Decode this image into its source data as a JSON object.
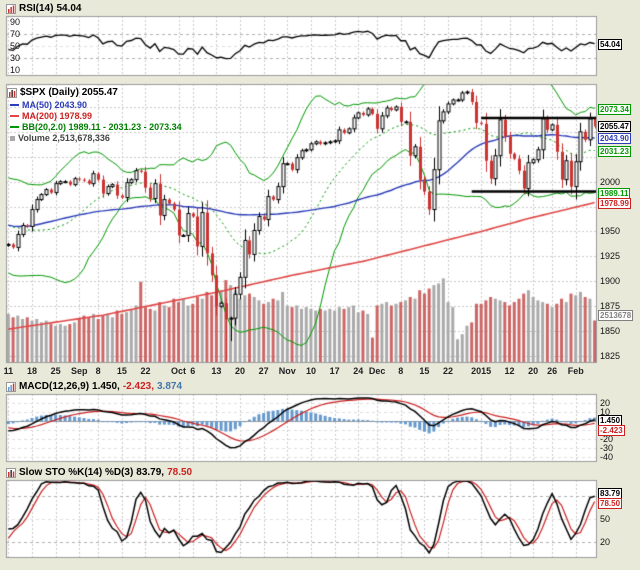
{
  "colors": {
    "background": "#e9e9da",
    "plot_bg": "#ffffff",
    "grid": "#cccccc",
    "grid_strong": "#b0b0b0",
    "border": "#999999",
    "ma50": "#2b3db8",
    "ma200": "#e04848",
    "bb": "#009900",
    "candle_down": "#cc3333",
    "candle_stroke": "#000000",
    "volume_up": "#aaaaaa",
    "volume_down": "#cc6666",
    "macd_line": "#000000",
    "macd_signal": "#cc2222",
    "macd_hist": "#6699cc",
    "sto_k": "#000000",
    "sto_d": "#cc2222",
    "rsi_line": "#000000",
    "trendline": "#000000",
    "volume_text": "#555555"
  },
  "panels": {
    "rsi": {
      "name": "RSI(14)",
      "value": "54.04"
    },
    "main": {
      "title": "$SPX (Daily) 2055.47",
      "legend": {
        "ma50": "MA(50) 2043.90",
        "ma200": "MA(200) 1978.99",
        "bb": "BB(20,2.0) 1989.11 - 2031.23 - 2073.34",
        "volume": "Volume 2,513,678,336"
      }
    },
    "macd": {
      "name": "MACD(12,26,9)",
      "macd": "1.450,",
      "signal": "-2.423,",
      "hist": "3.874"
    },
    "sto": {
      "name": "Slow STO %K(14) %D(3)",
      "k": "83.79,",
      "d": "78.50"
    }
  },
  "chart_data": [
    {
      "type": "line",
      "name": "RSI(14)",
      "params": {
        "period": 14
      },
      "derived_from": "$SPX daily closes",
      "last": 54.04,
      "ylim": [
        0,
        100
      ],
      "yticks": [
        90,
        70,
        50,
        30,
        10
      ],
      "hlines": [
        70,
        30
      ],
      "mid_line": 50,
      "badge": {
        "value": 54.04,
        "text": "54.04",
        "color": "#000000"
      }
    },
    {
      "type": "candlestick",
      "symbol": "$SPX",
      "timeframe": "Daily",
      "last": 2055.47,
      "ylim": [
        1818,
        2098
      ],
      "grid_step": 25,
      "yticks": [
        2000,
        1950,
        1925,
        1900,
        1875,
        1850,
        1825
      ],
      "x_ticks": [
        [
          0,
          "11"
        ],
        [
          5,
          "18"
        ],
        [
          10,
          "25"
        ],
        [
          15,
          "Sep"
        ],
        [
          19,
          "8"
        ],
        [
          24,
          "15"
        ],
        [
          29,
          "22"
        ],
        [
          36,
          "Oct"
        ],
        [
          39,
          "6"
        ],
        [
          44,
          "13"
        ],
        [
          49,
          "20"
        ],
        [
          54,
          "27"
        ],
        [
          59,
          "Nov"
        ],
        [
          64,
          "10"
        ],
        [
          69,
          "17"
        ],
        [
          74,
          "24"
        ],
        [
          78,
          "Dec"
        ],
        [
          83,
          "8"
        ],
        [
          88,
          "15"
        ],
        [
          93,
          "22"
        ],
        [
          100,
          "2015"
        ],
        [
          106,
          "12"
        ],
        [
          111,
          "20"
        ],
        [
          115,
          "26"
        ],
        [
          120,
          "Feb"
        ]
      ],
      "pre_closes": [
        1964,
        1968,
        1962,
        1973,
        1978,
        1975,
        1984,
        1987,
        1984,
        1978,
        1970,
        1962,
        1970,
        1939,
        1930,
        1925,
        1921,
        1910,
        1932,
        1936
      ],
      "closes": [
        1937,
        1934,
        1947,
        1956,
        1955,
        1972,
        1982,
        1987,
        1992,
        1989,
        1998,
        2000,
        2000,
        1997,
        2003,
        2002,
        2001,
        1998,
        2008,
        2002,
        1988,
        1995,
        1997,
        1986,
        1984,
        1999,
        2002,
        2011,
        2010,
        1994,
        1983,
        1998,
        1966,
        1982,
        1978,
        1972,
        1946,
        1946,
        1968,
        1965,
        1935,
        1969,
        1928,
        1906,
        1875,
        1878,
        1862,
        1863,
        1887,
        1904,
        1941,
        1927,
        1951,
        1965,
        1962,
        1985,
        1982,
        1995,
        2018,
        2018,
        2012,
        2024,
        2031,
        2032,
        2038,
        2040,
        2038,
        2039,
        2040,
        2041,
        2052,
        2049,
        2053,
        2064,
        2069,
        2067,
        2073,
        2068,
        2053,
        2066,
        2074,
        2072,
        2075,
        2060,
        2060,
        2026,
        2035,
        2002,
        1990,
        1972,
        2012,
        2061,
        2070,
        2078,
        2082,
        2082,
        2089,
        2090,
        2080,
        2059,
        2058,
        2021,
        2003,
        2026,
        2062,
        2045,
        2028,
        2023,
        2011,
        1993,
        2019,
        2022,
        2032,
        2063,
        2052,
        2057,
        2030,
        2002,
        2021,
        1995,
        2020,
        2050,
        2042,
        2063,
        2055.47
      ],
      "volumes": [
        2.9,
        2.7,
        2.8,
        2.6,
        2.7,
        2.5,
        2.6,
        2.4,
        2.5,
        2.3,
        2.2,
        2.3,
        2.2,
        2.3,
        2.4,
        2.6,
        2.8,
        2.7,
        2.9,
        2.6,
        2.8,
        2.9,
        2.7,
        3.1,
        2.9,
        3.0,
        3.2,
        3.4,
        4.8,
        3.3,
        3.2,
        3.1,
        3.6,
        3.4,
        3.3,
        3.8,
        3.6,
        3.8,
        3.4,
        3.5,
        3.9,
        3.8,
        4.2,
        4.0,
        4.1,
        4.3,
        4.9,
        4.6,
        4.3,
        3.8,
        4.0,
        4.1,
        3.9,
        3.7,
        3.5,
        3.6,
        3.8,
        3.7,
        4.2,
        3.4,
        3.3,
        3.4,
        3.2,
        3.3,
        3.2,
        3.1,
        3.2,
        3.1,
        3.2,
        3.1,
        3.3,
        3.2,
        3.3,
        3.4,
        3.0,
        3.1,
        2.9,
        1.5,
        3.4,
        3.5,
        3.6,
        3.4,
        3.5,
        3.6,
        3.7,
        3.9,
        3.8,
        4.3,
        4.1,
        4.4,
        4.6,
        4.7,
        5.0,
        3.6,
        3.3,
        1.4,
        1.7,
        2.2,
        2.4,
        3.5,
        3.5,
        3.7,
        3.9,
        3.8,
        3.7,
        3.6,
        3.4,
        3.6,
        3.8,
        4.1,
        4.3,
        3.9,
        3.7,
        3.6,
        3.5,
        3.3,
        3.5,
        3.8,
        3.6,
        4.1,
        4.0,
        4.2,
        3.9,
        3.8,
        2.513678
      ],
      "low_overrides": {
        "46": 1820,
        "47": 1840,
        "120": 1982
      },
      "ma50_period": 50,
      "ma50_last": 2043.9,
      "ma200_last": 1978.99,
      "ma200_points": [
        [
          0,
          1852
        ],
        [
          20,
          1866
        ],
        [
          45,
          1890
        ],
        [
          60,
          1906
        ],
        [
          75,
          1920
        ],
        [
          90,
          1938
        ],
        [
          100,
          1950
        ],
        [
          110,
          1963
        ],
        [
          124,
          1978.99
        ]
      ],
      "bb_params": [
        20,
        2.0
      ],
      "bb_last": {
        "lower": 1989.11,
        "mid": 2031.23,
        "upper": 2073.34
      },
      "trendlines": [
        {
          "i0": 100,
          "i1": 124,
          "price": 2064
        },
        {
          "i0": 98,
          "i1": 124,
          "price": 1990
        }
      ],
      "badges": [
        {
          "value": 2073.34,
          "text": "2073.34",
          "color": "#009900"
        },
        {
          "value": 2055.47,
          "text": "2055.47",
          "color": "#000000"
        },
        {
          "value": 2043.9,
          "text": "2043.90",
          "color": "#2b3db8"
        },
        {
          "value": 2031.23,
          "text": "2031.23",
          "color": "#009900"
        },
        {
          "value": 1989.11,
          "text": "1989.11",
          "color": "#009900"
        },
        {
          "value": 1978.99,
          "text": "1978.99",
          "color": "#cc2222"
        }
      ],
      "volume_badge": {
        "text": "2513678",
        "color": "#808080"
      },
      "volume_total_label": "2,513,678,336"
    },
    {
      "type": "macd",
      "name": "MACD(12,26,9)",
      "params": [
        12,
        26,
        9
      ],
      "last": {
        "macd": 1.45,
        "signal": -2.423,
        "hist": 3.874
      },
      "ylim": [
        -45,
        30
      ],
      "yticks": [
        20,
        10,
        0,
        -10,
        -20,
        -30,
        -40
      ],
      "zero_line": 0,
      "badges": [
        {
          "value": 1.45,
          "text": "1.450",
          "color": "#000000"
        },
        {
          "value": -2.423,
          "text": "-2.423",
          "color": "#cc2222"
        }
      ]
    },
    {
      "type": "stochastic",
      "name": "Slow STO %K(14) %D(3)",
      "params": {
        "k": 14,
        "d": 3
      },
      "last": {
        "k": 83.79,
        "d": 78.5
      },
      "ylim": [
        0,
        100
      ],
      "yticks": [
        80,
        50,
        20
      ],
      "hlines": [
        80,
        20
      ],
      "mid_line": 50,
      "badges": [
        {
          "value": 83.79,
          "text": "83.79",
          "color": "#000000"
        },
        {
          "value": 78.5,
          "text": "78.50",
          "color": "#cc2222"
        }
      ]
    }
  ]
}
